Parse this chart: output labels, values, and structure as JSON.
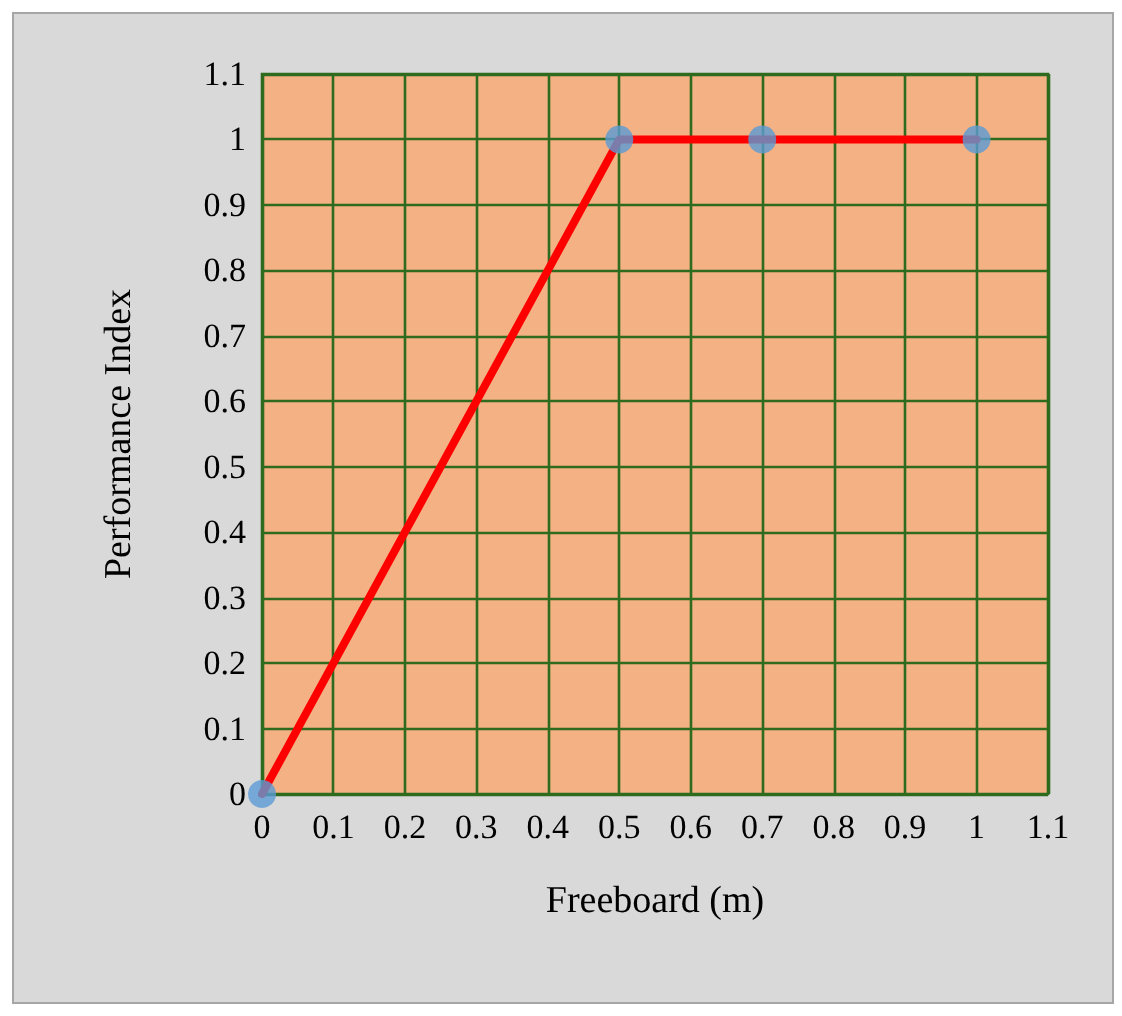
{
  "chart_data": {
    "type": "line",
    "xlabel": "Freeboard (m)",
    "ylabel": "Performance Index",
    "x": [
      0,
      0.5,
      0.7,
      1
    ],
    "series": [
      {
        "type": "line",
        "color": "#ff0000",
        "marker": "none",
        "values": [
          0,
          1,
          1,
          1
        ]
      },
      {
        "type": "scatter",
        "color": "#5b9bd5",
        "values": [
          0,
          1,
          1,
          1
        ]
      }
    ],
    "xlim": [
      0,
      1.1
    ],
    "xticks": [
      0,
      0.1,
      0.2,
      0.3,
      0.4,
      0.5,
      0.6,
      0.7,
      0.8,
      0.9,
      1,
      1.1
    ],
    "ylim": [
      0,
      1.1
    ],
    "yticks": [
      0,
      0.1,
      0.2,
      0.3,
      0.4,
      0.5,
      0.6,
      0.7,
      0.8,
      0.9,
      1,
      1.1
    ],
    "grid": true,
    "marker": "circle",
    "line_style": "solid"
  }
}
